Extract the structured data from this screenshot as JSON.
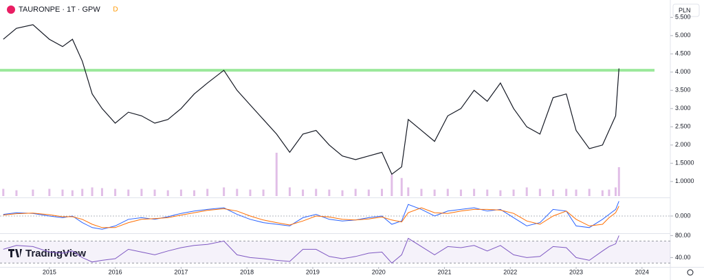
{
  "chart_data": [
    {
      "type": "line",
      "title": "TAURONPE · 1T · GPW",
      "interval": "D",
      "currency": "PLN",
      "brand": "TradingView",
      "x": [
        2014.3,
        2014.5,
        2014.75,
        2015.0,
        2015.2,
        2015.35,
        2015.5,
        2015.65,
        2015.8,
        2016.0,
        2016.2,
        2016.4,
        2016.6,
        2016.8,
        2017.0,
        2017.2,
        2017.4,
        2017.65,
        2017.85,
        2018.05,
        2018.25,
        2018.45,
        2018.65,
        2018.85,
        2019.05,
        2019.25,
        2019.45,
        2019.65,
        2019.85,
        2020.05,
        2020.2,
        2020.35,
        2020.45,
        2020.65,
        2020.85,
        2021.05,
        2021.25,
        2021.45,
        2021.65,
        2021.85,
        2022.05,
        2022.25,
        2022.45,
        2022.65,
        2022.85,
        2023.0,
        2023.2,
        2023.4,
        2023.5,
        2023.6,
        2023.65
      ],
      "values": [
        4.9,
        5.2,
        5.3,
        4.9,
        4.7,
        4.9,
        4.3,
        3.4,
        3.0,
        2.6,
        2.9,
        2.8,
        2.6,
        2.7,
        3.0,
        3.4,
        3.7,
        4.05,
        3.5,
        3.1,
        2.7,
        2.3,
        1.8,
        2.3,
        2.4,
        2.0,
        1.7,
        1.6,
        1.7,
        1.8,
        1.2,
        1.4,
        2.7,
        2.4,
        2.1,
        2.8,
        3.0,
        3.5,
        3.2,
        3.7,
        3.0,
        2.5,
        2.3,
        3.3,
        3.4,
        2.4,
        1.9,
        2.0,
        2.4,
        2.8,
        4.1
      ],
      "color": "#131722",
      "volume": [
        10,
        8,
        9,
        10,
        9,
        8,
        10,
        12,
        11,
        10,
        9,
        10,
        9,
        8,
        9,
        8,
        10,
        12,
        10,
        9,
        9,
        60,
        12,
        9,
        10,
        9,
        8,
        10,
        9,
        10,
        30,
        25,
        12,
        10,
        9,
        10,
        9,
        10,
        9,
        8,
        9,
        12,
        10,
        9,
        10,
        9,
        10,
        8,
        9,
        12,
        40
      ],
      "volume_color": "#e1bee7",
      "y2lim": [
        0,
        100
      ],
      "xlim": [
        2014.25,
        2024.43
      ],
      "xticks": [
        2015,
        2016,
        2017,
        2018,
        2019,
        2020,
        2021,
        2022,
        2023,
        2024
      ],
      "ylim": [
        0.6,
        5.6
      ],
      "yticks": [
        {
          "value": 5.5,
          "label": "5.500"
        },
        {
          "value": 5,
          "label": "5.000"
        },
        {
          "value": 4.5,
          "label": "4.500"
        },
        {
          "value": 4,
          "label": "4.000"
        },
        {
          "value": 3.5,
          "label": "3.500"
        },
        {
          "value": 3,
          "label": "3.000"
        },
        {
          "value": 2.5,
          "label": "2.500"
        },
        {
          "value": 2,
          "label": "2.000"
        },
        {
          "value": 1.5,
          "label": "1.5000"
        },
        {
          "value": 1,
          "label": "1.0000"
        }
      ],
      "hline": 4.05,
      "hline_color": "#9be89b"
    },
    {
      "type": "macd",
      "series": [
        {
          "color": "#2962ff",
          "values": [
            0.05,
            0.1,
            0.08,
            0.0,
            -0.05,
            0.0,
            -0.2,
            -0.35,
            -0.4,
            -0.3,
            -0.1,
            -0.05,
            -0.1,
            -0.02,
            0.08,
            0.15,
            0.2,
            0.25,
            0.05,
            -0.1,
            -0.2,
            -0.25,
            -0.3,
            -0.05,
            0.05,
            -0.1,
            -0.15,
            -0.12,
            -0.05,
            0.0,
            -0.25,
            -0.15,
            0.35,
            0.2,
            0.0,
            0.15,
            0.2,
            0.25,
            0.15,
            0.2,
            -0.05,
            -0.3,
            -0.2,
            0.2,
            0.15,
            -0.3,
            -0.35,
            -0.1,
            0.05,
            0.2,
            0.45
          ]
        },
        {
          "color": "#ff6d00",
          "values": [
            0.03,
            0.07,
            0.09,
            0.04,
            -0.02,
            -0.02,
            -0.1,
            -0.25,
            -0.35,
            -0.35,
            -0.2,
            -0.1,
            -0.08,
            -0.05,
            0.03,
            0.1,
            0.17,
            0.22,
            0.15,
            0.0,
            -0.12,
            -0.2,
            -0.27,
            -0.15,
            0.0,
            -0.03,
            -0.1,
            -0.12,
            -0.09,
            -0.03,
            -0.12,
            -0.18,
            0.1,
            0.25,
            0.1,
            0.08,
            0.15,
            0.2,
            0.2,
            0.18,
            0.08,
            -0.15,
            -0.25,
            0.0,
            0.15,
            -0.1,
            -0.3,
            -0.25,
            -0.05,
            0.1,
            0.3
          ]
        }
      ],
      "ylim": [
        -0.5,
        0.5
      ],
      "yticks": [
        {
          "value": 0,
          "label": "0.000"
        }
      ]
    },
    {
      "type": "rsi",
      "values": [
        55,
        62,
        60,
        50,
        48,
        52,
        40,
        32,
        35,
        38,
        55,
        50,
        45,
        52,
        58,
        62,
        64,
        70,
        45,
        40,
        38,
        35,
        33,
        55,
        55,
        42,
        38,
        42,
        48,
        50,
        30,
        45,
        75,
        60,
        45,
        60,
        58,
        62,
        52,
        62,
        45,
        40,
        42,
        60,
        58,
        40,
        35,
        52,
        60,
        65,
        80
      ],
      "color": "#7e57c2",
      "levels": [
        70,
        30
      ],
      "ylim": [
        23,
        83
      ],
      "yticks": [
        {
          "value": 80,
          "label": "80.00"
        },
        {
          "value": 40,
          "label": "40.00"
        }
      ]
    }
  ]
}
